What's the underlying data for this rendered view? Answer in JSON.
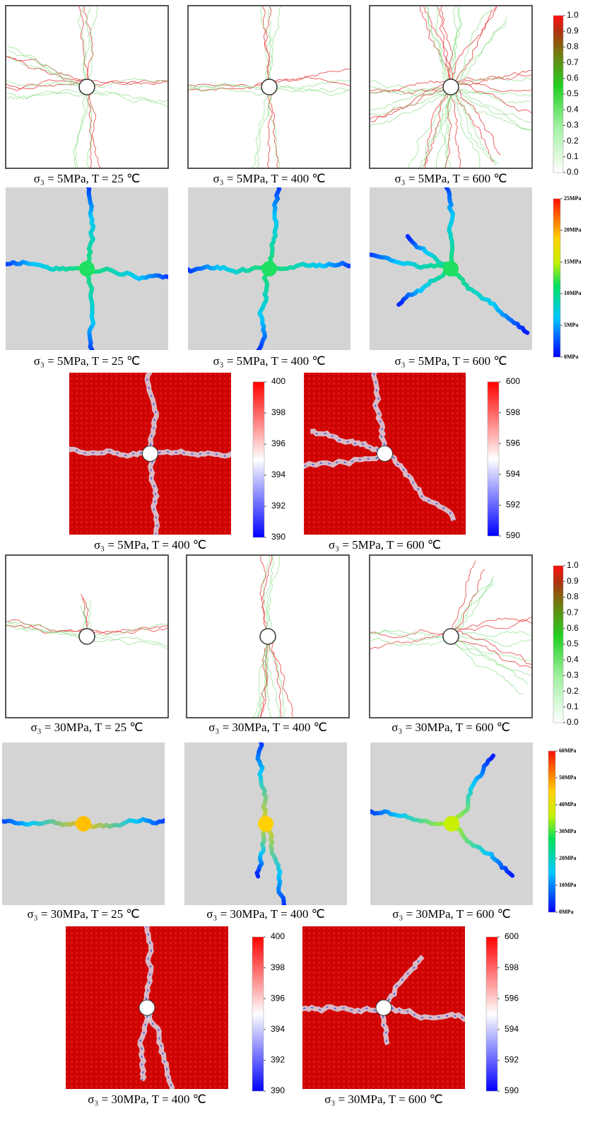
{
  "rows": [
    {
      "panels": [
        {
          "caption": "σ₃ = 5MPa, T = 25 ℃"
        },
        {
          "caption": "σ₃ = 5MPa, T = 400 ℃"
        },
        {
          "caption": "σ₃ = 5MPa, T = 600 ℃"
        }
      ],
      "colorbars": [
        {
          "labels": [
            "1.0",
            "0.9",
            "0.8",
            "0.7",
            "0.6",
            "0.5",
            "0.4",
            "0.3",
            "0.2",
            "0.1",
            "0.0"
          ]
        }
      ]
    },
    {
      "panels": [
        {
          "caption": "σ₃ = 5MPa, T = 25 ℃"
        },
        {
          "caption": "σ₃ = 5MPa, T = 400 ℃"
        },
        {
          "caption": "σ₃ = 5MPa, T = 600 ℃"
        }
      ],
      "colorbars": [
        {
          "labels": [
            "25MPa",
            "20MPa",
            "15MPa",
            "10MPa",
            "5MPa",
            "0MPa"
          ]
        }
      ]
    },
    {
      "panels": [
        {
          "caption": "σ₃ = 5MPa, T = 400 ℃"
        },
        {
          "caption": "σ₃ = 5MPa, T = 600 ℃"
        }
      ],
      "colorbars": [
        {
          "labels": [
            "400",
            "398",
            "396",
            "394",
            "392",
            "390"
          ]
        },
        {
          "labels": [
            "600",
            "598",
            "596",
            "594",
            "592",
            "590"
          ]
        }
      ]
    },
    {
      "panels": [
        {
          "caption": "σ₃ = 30MPa, T = 25 ℃"
        },
        {
          "caption": "σ₃ = 30MPa, T = 400 ℃"
        },
        {
          "caption": "σ₃ = 30MPa, T = 600 ℃"
        }
      ],
      "colorbars": [
        {
          "labels": [
            "1.0",
            "0.9",
            "0.8",
            "0.7",
            "0.6",
            "0.5",
            "0.4",
            "0.3",
            "0.2",
            "0.1",
            "0.0"
          ]
        }
      ]
    },
    {
      "panels": [
        {
          "caption": "σ₃ = 30MPa, T = 25 ℃"
        },
        {
          "caption": "σ₃ = 30MPa, T = 400 ℃"
        },
        {
          "caption": "σ₃ = 30MPa, T = 600 ℃"
        }
      ],
      "colorbars": [
        {
          "labels": [
            "60MPa",
            "50MPa",
            "40MPa",
            "30MPa",
            "20MPa",
            "10MPa",
            "0MPa"
          ]
        }
      ]
    },
    {
      "panels": [
        {
          "caption": "σ₃ = 30MPa, T = 400 ℃"
        },
        {
          "caption": "σ₃ = 30MPa, T = 600 ℃"
        }
      ],
      "colorbars": [
        {
          "labels": [
            "400",
            "398",
            "396",
            "394",
            "392",
            "390"
          ]
        },
        {
          "labels": [
            "600",
            "598",
            "596",
            "594",
            "592",
            "590"
          ]
        }
      ]
    }
  ]
}
